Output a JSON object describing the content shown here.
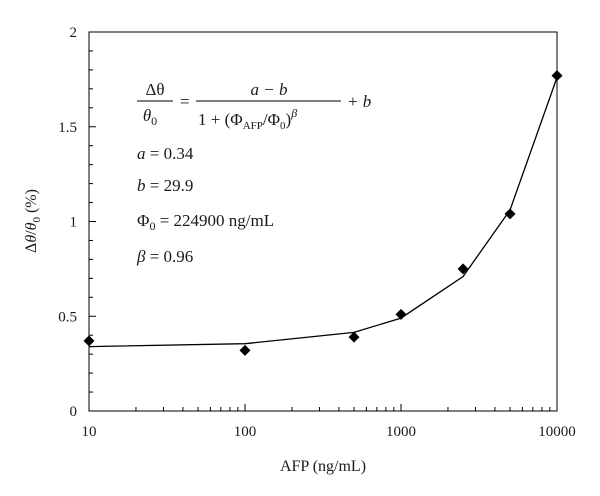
{
  "chart_data": {
    "type": "scatter",
    "title": "",
    "xlabel": "AFP (ng/mL)",
    "ylabel": "Δθ/θ₀ (%)",
    "x_scale": "log",
    "xlim": [
      10,
      10000
    ],
    "ylim": [
      0,
      2
    ],
    "x_ticks": [
      10,
      100,
      1000,
      10000
    ],
    "x_tick_labels": [
      "10",
      "100",
      "1000",
      "10000"
    ],
    "y_ticks": [
      0,
      0.5,
      1,
      1.5,
      2
    ],
    "y_tick_labels": [
      "0",
      "0.5",
      "1",
      "1.5",
      "2"
    ],
    "grid": false,
    "legend": "none",
    "series": [
      {
        "kind": "markers",
        "marker": "diamond",
        "color": "#000000",
        "x": [
          10,
          100,
          500,
          1000,
          2500,
          5000,
          10000
        ],
        "y": [
          0.37,
          0.32,
          0.39,
          0.51,
          0.75,
          1.04,
          1.77
        ]
      },
      {
        "kind": "fit-line",
        "color": "#000000",
        "x": [
          10,
          100,
          500,
          1000,
          2500,
          5000,
          10000
        ],
        "y": [
          0.34,
          0.355,
          0.415,
          0.49,
          0.71,
          1.06,
          1.76
        ]
      }
    ],
    "annotation": {
      "lhs_num": "Δθ",
      "lhs_den": "θ",
      "lhs_den_sub": "0",
      "equals": "=",
      "rhs_num": "a − b",
      "rhs_den_pre": "1 + (Φ",
      "rhs_den_sub1": "AFP",
      "rhs_den_mid": "/Φ",
      "rhs_den_sub2": "0",
      "rhs_den_post": ")",
      "rhs_den_exp": "β",
      "rhs_tail": "+ b",
      "params": [
        {
          "sym": "a",
          "sub": "",
          "value": " = 0.34"
        },
        {
          "sym": "b",
          "sub": "",
          "value": " = 29.9"
        },
        {
          "sym": "Φ",
          "sub": "0",
          "value": " = 224900 ng/mL"
        },
        {
          "sym": "β",
          "sub": "",
          "value": " = 0.96"
        }
      ]
    }
  }
}
